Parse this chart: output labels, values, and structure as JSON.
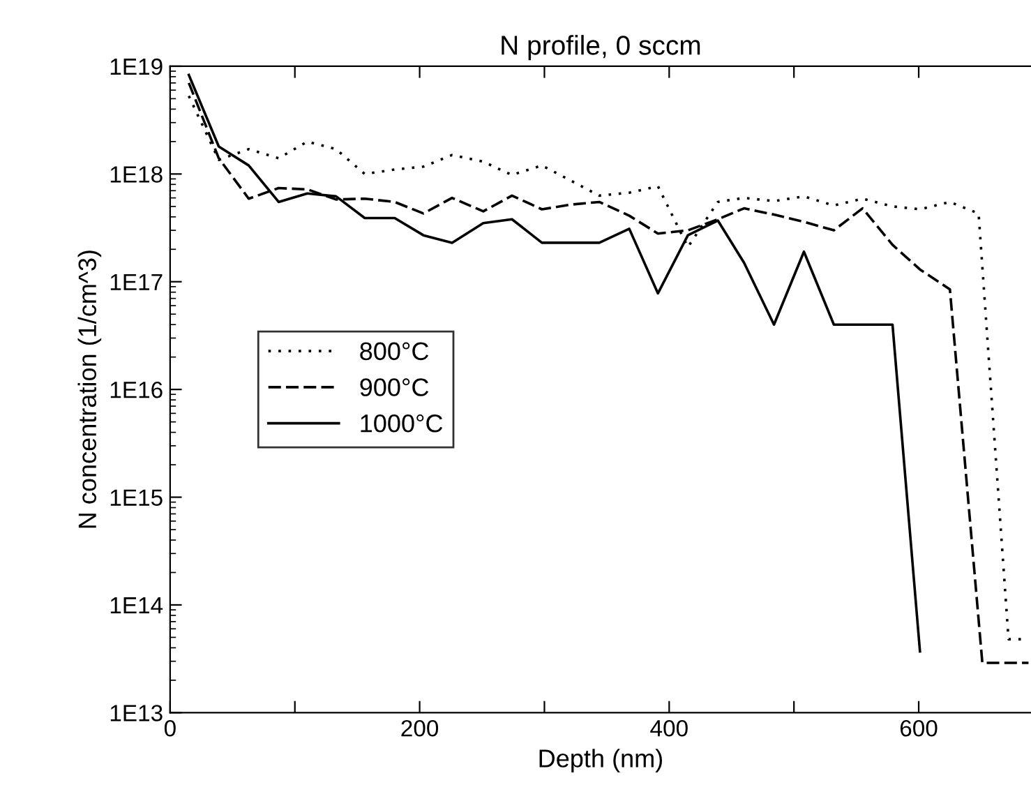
{
  "chart_data": {
    "type": "line",
    "title": "N profile, 0 sccm",
    "xlabel": "Depth (nm)",
    "ylabel": "N concentration (1/cm^3)",
    "log": "y",
    "grid": false,
    "legend": "center left",
    "xlim": [
      0,
      690
    ],
    "ylim": [
      10000000000000.0,
      1e+19
    ],
    "xticks": [
      0,
      {
        "value": 100,
        "label": null
      },
      200,
      {
        "value": 300,
        "label": null
      },
      400,
      {
        "value": 500,
        "label": null
      },
      600
    ],
    "yticks": [
      {
        "value": 10000000000000.0,
        "label": "1E13"
      },
      {
        "value": 100000000000000.0,
        "label": "1E14"
      },
      {
        "value": 1000000000000000.0,
        "label": "1E15"
      },
      {
        "value": 1e+16,
        "label": "1E16"
      },
      {
        "value": 1e+17,
        "label": "1E17"
      },
      {
        "value": 1e+18,
        "label": "1E18"
      },
      {
        "value": 1e+19,
        "label": "1E19"
      }
    ],
    "series": [
      {
        "name": "800°C",
        "color": "#000000",
        "line_style": "dotted",
        "x": [
          15,
          39,
          63,
          87,
          110,
          133,
          156,
          180,
          203,
          226,
          251,
          274,
          298,
          344,
          368,
          391,
          415,
          439,
          460,
          484,
          508,
          532,
          555,
          579,
          601,
          625,
          648,
          672,
          683
        ],
        "values": [
          5.3e+18,
          1.35e+18,
          1.7e+18,
          1.4e+18,
          2e+18,
          1.7e+18,
          1e+18,
          1.1e+18,
          1.17e+18,
          1.5e+18,
          1.3e+18,
          9.8e+17,
          1.2e+18,
          6.3e+17,
          6.7e+17,
          7.7e+17,
          2.1e+17,
          5.5e+17,
          6e+17,
          5.6e+17,
          6.2e+17,
          5.1e+17,
          5.9e+17,
          5e+17,
          4.7e+17,
          5.5e+17,
          4.3e+17,
          48000000000000.0,
          48000000000000.0
        ]
      },
      {
        "name": "900°C",
        "color": "#000000",
        "line_style": "dashed",
        "x": [
          15,
          39,
          63,
          87,
          110,
          133,
          156,
          180,
          203,
          226,
          251,
          274,
          298,
          321,
          344,
          368,
          391,
          415,
          439,
          460,
          484,
          508,
          532,
          555,
          579,
          601,
          625,
          651,
          688
        ],
        "values": [
          7e+18,
          1.4e+18,
          5.9e+17,
          7.4e+17,
          7.2e+17,
          5.8e+17,
          5.9e+17,
          5.5e+17,
          4.3e+17,
          6e+17,
          4.5e+17,
          6.3e+17,
          4.7e+17,
          5.2e+17,
          5.5e+17,
          4.1e+17,
          2.8e+17,
          3e+17,
          3.8e+17,
          4.8e+17,
          4.2e+17,
          3.6e+17,
          3e+17,
          4.8e+17,
          2.2e+17,
          1.3e+17,
          8.5e+16,
          29000000000000.0,
          29000000000000.0
        ]
      },
      {
        "name": "1000°C",
        "color": "#000000",
        "line_style": "solid",
        "x": [
          15,
          39,
          63,
          87,
          110,
          133,
          156,
          180,
          203,
          226,
          251,
          274,
          298,
          321,
          344,
          368,
          391,
          415,
          439,
          460,
          484,
          508,
          532,
          555,
          579,
          601
        ],
        "values": [
          8.3e+18,
          1.8e+18,
          1.2e+18,
          5.5e+17,
          6.6e+17,
          6.2e+17,
          3.9e+17,
          3.9e+17,
          2.7e+17,
          2.3e+17,
          3.5e+17,
          3.8e+17,
          2.3e+17,
          2.3e+17,
          2.3e+17,
          3.1e+17,
          7.8e+16,
          2.7e+17,
          3.7e+17,
          1.5e+17,
          4e+16,
          1.9e+17,
          4e+16,
          4e+16,
          4e+16,
          37000000000000.0
        ]
      }
    ]
  }
}
